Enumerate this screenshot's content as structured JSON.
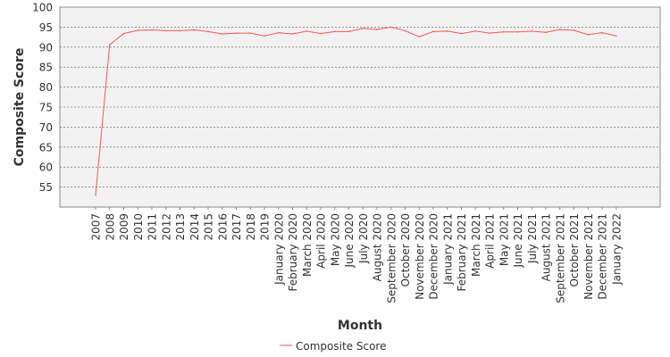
{
  "chart_data": {
    "type": "line",
    "title": "",
    "xlabel": "Month",
    "ylabel": "Composite Score",
    "ylim": [
      50,
      100
    ],
    "yticks": [
      55,
      60,
      65,
      70,
      75,
      80,
      85,
      90,
      95,
      100
    ],
    "grid": true,
    "legend_position": "bottom-center",
    "categories": [
      "2007",
      "2008",
      "2009",
      "2010",
      "2011",
      "2012",
      "2013",
      "2014",
      "2015",
      "2016",
      "2017",
      "2018",
      "2019",
      "January 2020",
      "February 2020",
      "March 2020",
      "April 2020",
      "May 2020",
      "June 2020",
      "July 2020",
      "August 2020",
      "September 2020",
      "October 2020",
      "November 2020",
      "December 2020",
      "January 2021",
      "February 2021",
      "March 2021",
      "April 2021",
      "May 2021",
      "June 2021",
      "July 2021",
      "August 2021",
      "September 2021",
      "October 2021",
      "November 2021",
      "December 2021",
      "January 2022"
    ],
    "series": [
      {
        "name": "Composite Score",
        "color": "#ff5555",
        "values": [
          53.0,
          90.6,
          93.4,
          94.2,
          94.3,
          94.1,
          94.1,
          94.3,
          93.9,
          93.3,
          93.5,
          93.5,
          92.8,
          93.6,
          93.3,
          94.0,
          93.4,
          93.9,
          93.9,
          94.7,
          94.4,
          95.0,
          94.1,
          92.6,
          93.9,
          94.0,
          93.4,
          94.0,
          93.5,
          93.8,
          93.8,
          94.0,
          93.7,
          94.4,
          94.2,
          93.1,
          93.6,
          92.8
        ]
      }
    ]
  },
  "colors": {
    "plot_background": "#f2f2f2",
    "grid": "#555555",
    "axis": "#888888",
    "series": "#ff5555"
  }
}
